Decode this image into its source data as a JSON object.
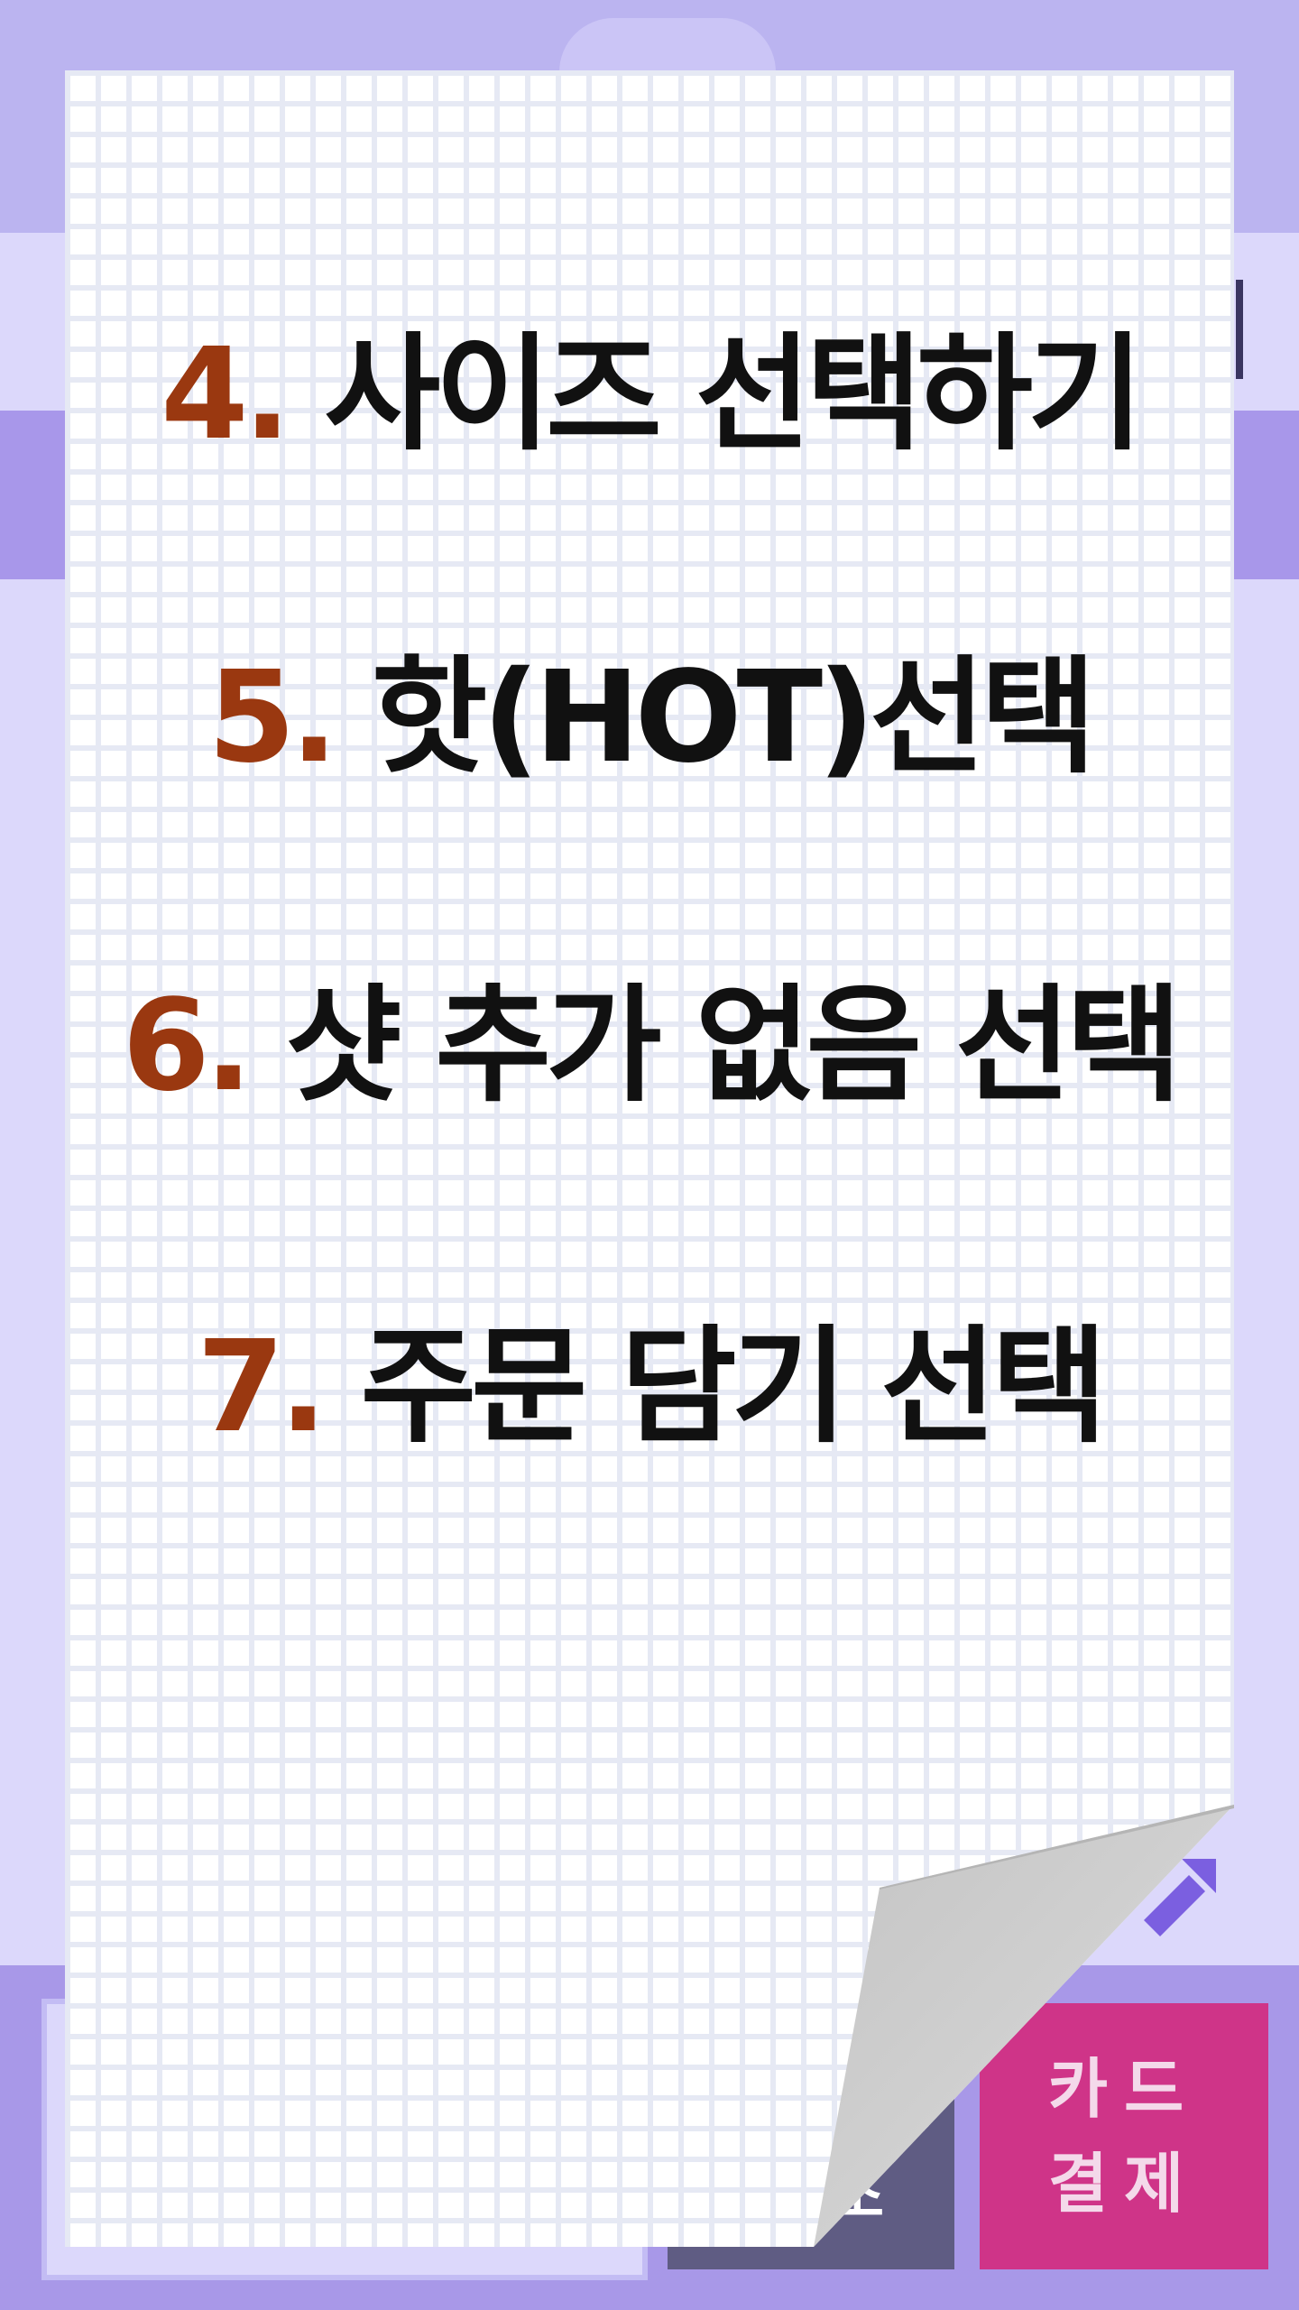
{
  "instructions": {
    "steps": [
      {
        "number": "4.",
        "text": "사이즈 선택하기"
      },
      {
        "number": "5.",
        "text": "핫(HOT)선택"
      },
      {
        "number": "6.",
        "text": "샷 추가 없음 선택"
      },
      {
        "number": "7.",
        "text": "주문 담기 선택"
      }
    ]
  },
  "footer": {
    "cancel_fragment": "소",
    "card_pay_line1": "카드",
    "card_pay_line2": "결제"
  },
  "colors": {
    "step_number": "#9a3810",
    "step_text": "#111111",
    "card_pay_bg": "#cf3488",
    "cancel_bg": "#5f5c83",
    "lavender_bg": "#dcd8fb",
    "accent_purple": "#7b5fe0"
  },
  "icons": {
    "next_arrow": "arrow-right-icon",
    "page_curl": "page-curl-icon"
  }
}
